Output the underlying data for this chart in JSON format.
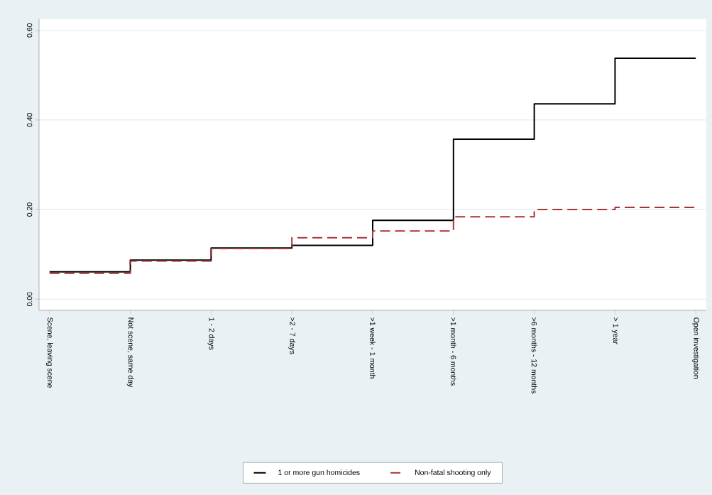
{
  "chart_data": {
    "type": "step",
    "categories": [
      "Scene, leaving scene",
      "Not scene, same day",
      "1 - 2 days",
      ">2 - 7 days",
      ">1 week - 1 month",
      ">1 month - 6 months",
      ">6 months - 12 months",
      "> 1 year",
      "Open investigation"
    ],
    "series": [
      {
        "name": "1 or more gun homicides",
        "color": "#000000",
        "line_style": "solid",
        "values": [
          0.061,
          0.087,
          0.114,
          0.12,
          0.176,
          0.357,
          0.436,
          0.538,
          0.538
        ]
      },
      {
        "name": "Non-fatal shooting only",
        "color": "#a83236",
        "line_style": "dashed",
        "values": [
          0.058,
          0.085,
          0.113,
          0.137,
          0.152,
          0.184,
          0.2,
          0.205,
          0.205
        ]
      }
    ],
    "ylim": [
      -0.025,
      0.625
    ],
    "yticks": [
      {
        "value": 0,
        "label": "0.00"
      },
      {
        "value": 0.2,
        "label": "0.20"
      },
      {
        "value": 0.4,
        "label": "0.40"
      },
      {
        "value": 0.6,
        "label": "0.60"
      }
    ],
    "grid": "y",
    "legend": "bottom"
  }
}
